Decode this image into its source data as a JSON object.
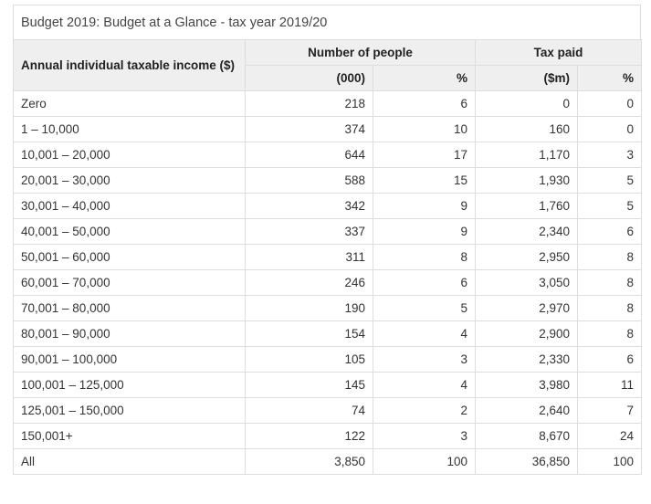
{
  "caption": "Budget 2019: Budget at a Glance - tax year 2019/20",
  "header": {
    "income": "Annual individual taxable income ($)",
    "people_group": "Number of people",
    "tax_group": "Tax paid",
    "columns": [
      "(000)",
      "%",
      "($m)",
      "%"
    ]
  },
  "table": {
    "rows": [
      [
        "Zero",
        "218",
        "6",
        "0",
        "0"
      ],
      [
        "1 – 10,000",
        "374",
        "10",
        "160",
        "0"
      ],
      [
        "10,001 – 20,000",
        "644",
        "17",
        "1,170",
        "3"
      ],
      [
        "20,001 – 30,000",
        "588",
        "15",
        "1,930",
        "5"
      ],
      [
        "30,001 – 40,000",
        "342",
        "9",
        "1,760",
        "5"
      ],
      [
        "40,001 – 50,000",
        "337",
        "9",
        "2,340",
        "6"
      ],
      [
        "50,001 – 60,000",
        "311",
        "8",
        "2,950",
        "8"
      ],
      [
        "60,001 – 70,000",
        "246",
        "6",
        "3,050",
        "8"
      ],
      [
        "70,001 – 80,000",
        "190",
        "5",
        "2,970",
        "8"
      ],
      [
        "80,001 – 90,000",
        "154",
        "4",
        "2,900",
        "8"
      ],
      [
        "90,001 – 100,000",
        "105",
        "3",
        "2,330",
        "6"
      ],
      [
        "100,001 – 125,000",
        "145",
        "4",
        "3,980",
        "11"
      ],
      [
        "125,001 – 150,000",
        "74",
        "2",
        "2,640",
        "7"
      ],
      [
        "150,001+",
        "122",
        "3",
        "8,670",
        "24"
      ],
      [
        "All",
        "3,850",
        "100",
        "36,850",
        "100"
      ]
    ]
  }
}
